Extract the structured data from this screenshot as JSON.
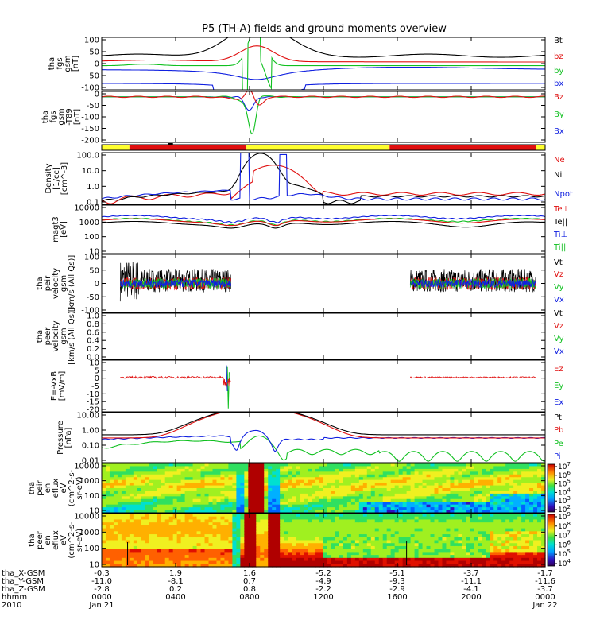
{
  "title": "P5 (TH-A) fields and ground moments overview",
  "colors": {
    "black": "#000000",
    "red": "#e01010",
    "green": "#10c020",
    "blue": "#1020e0",
    "yellow": "#ffff30"
  },
  "chart_data": {
    "type": "line",
    "x_axis": {
      "start": "2010-01-21 00:00",
      "end": "2010-01-22 00:00",
      "ticks": [
        "0000",
        "0400",
        "0800",
        "1200",
        "1600",
        "2000",
        "0000"
      ],
      "rows": [
        {
          "label": "tha_X-GSM",
          "values": [
            "-0.3",
            "1.9",
            "1.6",
            "-5.2",
            "-5.1",
            "-3.7",
            "-1.7"
          ]
        },
        {
          "label": "tha_Y-GSM",
          "values": [
            "-11.0",
            "-8.1",
            "0.7",
            "-4.9",
            "-9.3",
            "-11.1",
            "-11.6"
          ]
        },
        {
          "label": "tha_Z-GSM",
          "values": [
            "-2.8",
            "0.2",
            "0.8",
            "-2.2",
            "-2.9",
            "-4.1",
            "-3.7"
          ]
        },
        {
          "label": "hhmm",
          "values": [
            "0000",
            "0400",
            "0800",
            "1200",
            "1600",
            "2000",
            "0000"
          ]
        },
        {
          "label": "2010",
          "values": [
            "Jan 21",
            "",
            "",
            "",
            "",
            "",
            "Jan 22"
          ]
        }
      ]
    },
    "panels": [
      {
        "id": "fgs",
        "ylabel": [
          "tha",
          "fgs",
          "gsm",
          "[nT]"
        ],
        "scale": "linear",
        "ylim": [
          -100,
          100
        ],
        "ticks": [
          "100",
          "50",
          "0",
          "-50",
          "-100"
        ],
        "series": [
          {
            "name": "Bt",
            "color": "black"
          },
          {
            "name": "bz",
            "color": "red"
          },
          {
            "name": "by",
            "color": "green"
          },
          {
            "name": "bx",
            "color": "blue"
          }
        ]
      },
      {
        "id": "fgs_dipole",
        "ylabel": [
          "tha",
          "fgs",
          "gsm",
          "-T89",
          "[nT]"
        ],
        "scale": "linear",
        "ylim": [
          -210,
          25
        ],
        "ticks": [
          "0",
          "-50",
          "-100",
          "-150",
          "-200"
        ],
        "series": [
          {
            "name": "Bz",
            "color": "red"
          },
          {
            "name": "By",
            "color": "green"
          },
          {
            "name": "Bx",
            "color": "blue"
          }
        ]
      },
      {
        "id": "mode_bar",
        "segments": [
          {
            "from": "0000",
            "to": "0130",
            "color": "yellow"
          },
          {
            "from": "0130",
            "to": "0750",
            "color": "red"
          },
          {
            "from": "0750",
            "to": "1535",
            "color": "yellow"
          },
          {
            "from": "1535",
            "to": "2330",
            "color": "red"
          },
          {
            "from": "2330",
            "to": "2400",
            "color": "yellow"
          }
        ]
      },
      {
        "id": "density",
        "ylabel": [
          "Density",
          "[1/cc]",
          "[cm^-3]"
        ],
        "scale": "log",
        "ticks": [
          "100.0",
          "10.0",
          "1.0",
          "0.1"
        ],
        "series": [
          {
            "name": "Ne",
            "color": "red"
          },
          {
            "name": "Ni",
            "color": "black"
          },
          {
            "name": "Npot",
            "color": "blue"
          }
        ]
      },
      {
        "id": "temperature",
        "ylabel": [
          "magt3",
          "[eV]"
        ],
        "scale": "log",
        "ticks": [
          "10000",
          "1000",
          "100",
          "10"
        ],
        "series": [
          {
            "name": "Te⊥",
            "color": "red"
          },
          {
            "name": "Te||",
            "color": "black"
          },
          {
            "name": "Ti⊥",
            "color": "blue"
          },
          {
            "name": "Ti||",
            "color": "green"
          }
        ]
      },
      {
        "id": "peir_velocity",
        "ylabel": [
          "tha",
          "peir",
          "velocity",
          "gsm",
          "[km/s (All Qs)]"
        ],
        "scale": "linear",
        "ylim": [
          -100,
          100
        ],
        "ticks": [
          "100",
          "50",
          "0",
          "-50",
          "-100"
        ],
        "series": [
          {
            "name": "Vt",
            "color": "black"
          },
          {
            "name": "Vz",
            "color": "red"
          },
          {
            "name": "Vy",
            "color": "green"
          },
          {
            "name": "Vx",
            "color": "blue"
          }
        ]
      },
      {
        "id": "peer_velocity",
        "ylabel": [
          "tha",
          "peer",
          "velocity",
          "gsm",
          "[km/s (All Qs)]"
        ],
        "scale": "linear",
        "ticks": [
          "1.0",
          "0.8",
          "0.6",
          "0.4",
          "0.2",
          "0.0"
        ],
        "series": [
          {
            "name": "Vt",
            "color": "black"
          },
          {
            "name": "Vz",
            "color": "red"
          },
          {
            "name": "Vy",
            "color": "green"
          },
          {
            "name": "Vx",
            "color": "blue"
          }
        ]
      },
      {
        "id": "efield",
        "ylabel": [
          "E=-VxB",
          "[mV/m]"
        ],
        "scale": "linear",
        "ylim": [
          -20,
          10
        ],
        "ticks": [
          "10",
          "5",
          "0",
          "-5",
          "-10",
          "-15",
          "-20"
        ],
        "series": [
          {
            "name": "Ez",
            "color": "red"
          },
          {
            "name": "Ey",
            "color": "green"
          },
          {
            "name": "Ex",
            "color": "blue"
          }
        ]
      },
      {
        "id": "pressure",
        "ylabel": [
          "Pressure",
          "[nPa]"
        ],
        "scale": "log",
        "ticks": [
          "10.00",
          "1.00",
          "0.10",
          "0.01"
        ],
        "series": [
          {
            "name": "Pt",
            "color": "black"
          },
          {
            "name": "Pb",
            "color": "red"
          },
          {
            "name": "Pe",
            "color": "green"
          },
          {
            "name": "Pi",
            "color": "blue"
          }
        ]
      },
      {
        "id": "peir_spec",
        "type": "heatmap",
        "ylabel": [
          "tha",
          "peir",
          "en",
          "eflux",
          "eV",
          "(cm^2-s-",
          "sr-eV)"
        ],
        "scale": "log",
        "ticks": [
          "10000",
          "1000",
          "100",
          "10"
        ],
        "colorbar": {
          "ticks": [
            "10^7",
            "10^6",
            "10^5",
            "10^4",
            "10^3",
            "10^2"
          ]
        }
      },
      {
        "id": "peer_spec",
        "type": "heatmap",
        "ylabel": [
          "tha",
          "peer",
          "en",
          "eflux",
          "eV",
          "(cm^2-s-",
          "sr-eV)"
        ],
        "scale": "log",
        "ticks": [
          "10000",
          "1000",
          "100",
          "10"
        ],
        "colorbar": {
          "ticks": [
            "10^9",
            "10^8",
            "10^7",
            "10^6",
            "10^5",
            "10^4"
          ]
        }
      }
    ]
  }
}
